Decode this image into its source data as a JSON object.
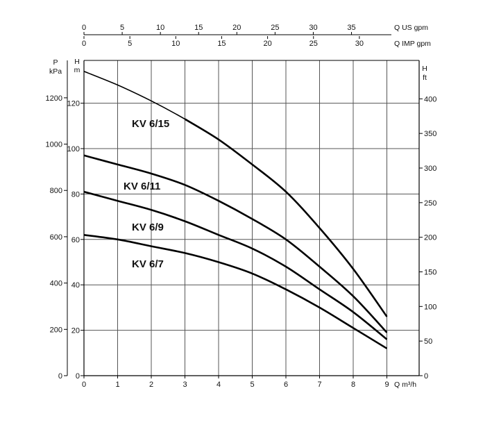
{
  "chart_data": {
    "type": "line",
    "x_unit_label": "Q m³/h",
    "x_ticks": [
      0,
      1,
      2,
      3,
      4,
      5,
      6,
      7,
      8,
      9
    ],
    "xlim": [
      0,
      9
    ],
    "y_left_head_label": [
      "H",
      "m"
    ],
    "y_left_head_ticks": [
      0,
      20,
      40,
      60,
      80,
      100,
      120
    ],
    "ylim_m": [
      0,
      140
    ],
    "y_pressure_label": [
      "P",
      "kPa"
    ],
    "y_pressure_ticks": [
      0,
      200,
      400,
      600,
      800,
      1000,
      1200
    ],
    "y_right_label": [
      "H",
      "ft"
    ],
    "y_right_ticks": [
      0,
      50,
      100,
      150,
      200,
      250,
      300,
      350,
      400
    ],
    "top_us_label": "Q US gpm",
    "top_us_ticks": [
      0,
      5,
      10,
      15,
      20,
      25,
      30,
      35
    ],
    "top_imp_label": "Q IMP gpm",
    "top_imp_ticks": [
      0,
      5,
      10,
      15,
      20,
      25,
      30
    ],
    "grid": true,
    "series": [
      {
        "name": "KV 6/15",
        "x": [
          0,
          1,
          2,
          3,
          4,
          5,
          6,
          7,
          8,
          9
        ],
        "y": [
          134,
          128,
          121,
          113,
          104,
          93,
          81,
          65,
          47,
          26
        ]
      },
      {
        "name": "KV 6/11",
        "x": [
          0,
          1,
          2,
          3,
          4,
          5,
          6,
          7,
          8,
          9
        ],
        "y": [
          97,
          93,
          89,
          84,
          77,
          69,
          60,
          48,
          35,
          19
        ]
      },
      {
        "name": "KV 6/9",
        "x": [
          0,
          1,
          2,
          3,
          4,
          5,
          6,
          7,
          8,
          9
        ],
        "y": [
          81,
          77,
          73,
          68,
          62,
          56,
          48,
          38,
          28,
          16
        ]
      },
      {
        "name": "KV 6/7",
        "x": [
          0,
          1,
          2,
          3,
          4,
          5,
          6,
          7,
          8,
          9
        ],
        "y": [
          62,
          60,
          57,
          54,
          50,
          45,
          38,
          30,
          21,
          12
        ]
      }
    ]
  }
}
